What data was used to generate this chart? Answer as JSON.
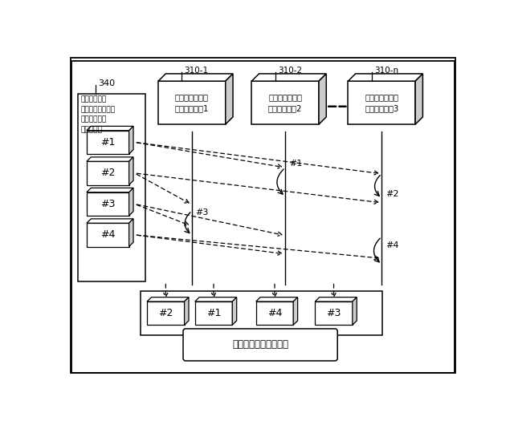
{
  "bg_color": "white",
  "label_340": "340",
  "label_310_1": "310-1",
  "label_310_2": "310-2",
  "label_310_n": "310-n",
  "queue_label": "メッセージを\n処理するキュー：\nインバウンド\nシーケンス",
  "inst1_label": "処理システム：\nインスタンス1",
  "inst2_label": "処理システム：\nインスタンス2",
  "inst3_label": "処理システム：\nインスタンス3",
  "bottom_label": "一貫性のない処理順序",
  "msg_labels_left": [
    "#1",
    "#2",
    "#3",
    "#4"
  ],
  "msg_labels_bottom": [
    "#2",
    "#1",
    "#4",
    "#3"
  ]
}
